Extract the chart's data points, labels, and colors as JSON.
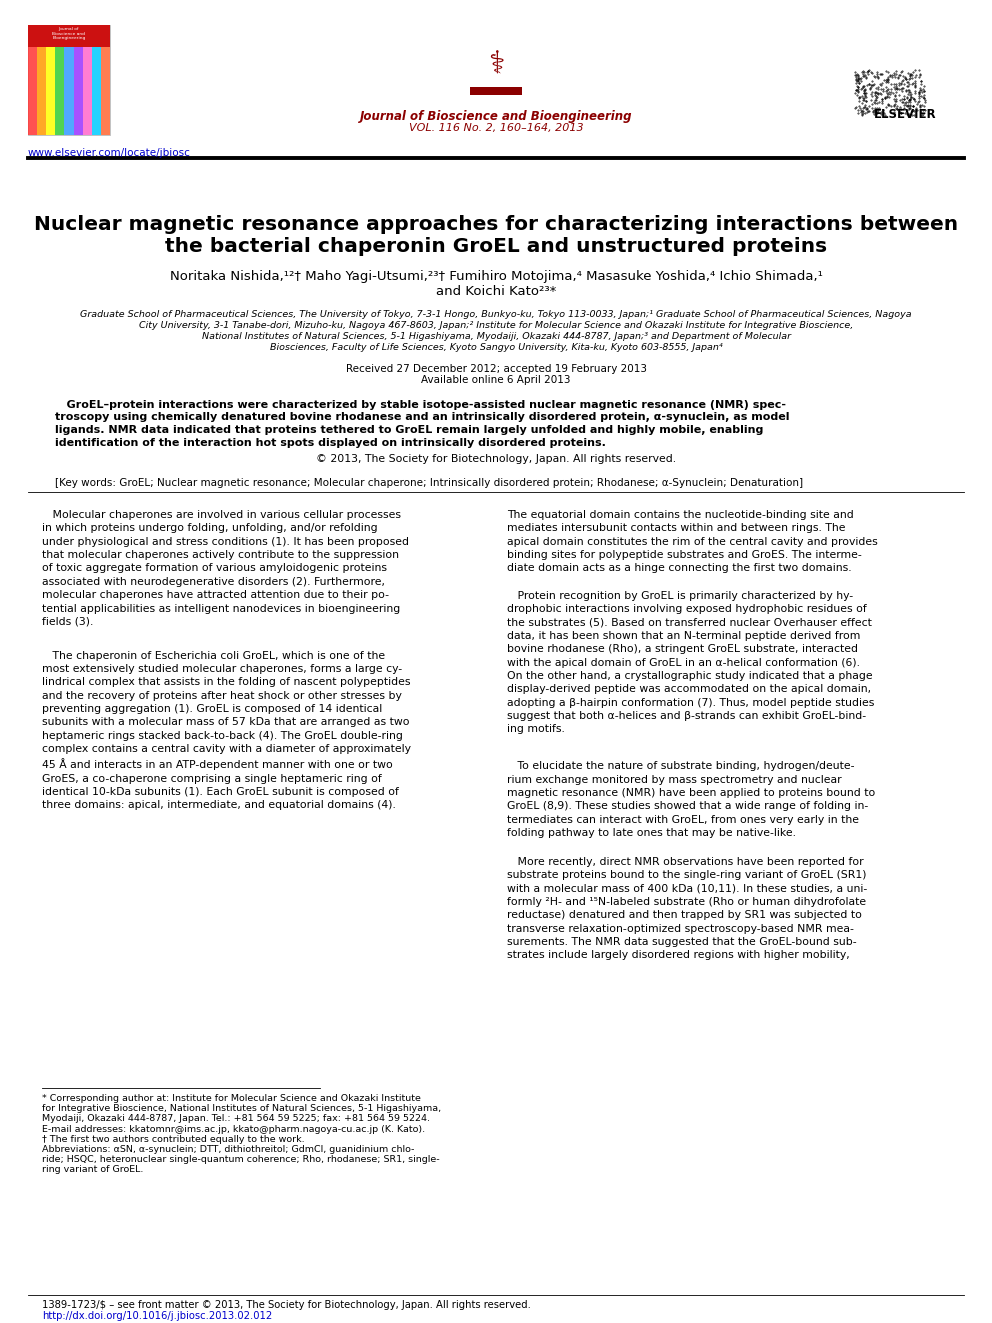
{
  "background_color": "#ffffff",
  "header": {
    "journal_name": "Journal of Bioscience and Bioengineering",
    "journal_vol": "VOL. 116 No. 2, 160–164, 2013",
    "journal_color": "#8B0000",
    "website": "www.elsevier.com/locate/jbiosc",
    "website_color": "#0000CC"
  },
  "title_line1": "Nuclear magnetic resonance approaches for characterizing interactions between",
  "title_line2": "the bacterial chaperonin GroEL and unstructured proteins",
  "title_color": "#000000",
  "title_fontsize": 14.5,
  "author_line1": "Noritaka Nishida,¹²† Maho Yagi-Utsumi,²³† Fumihiro Motojima,⁴ Masasuke Yoshida,⁴ Ichio Shimada,¹",
  "author_line2": "and Koichi Kato²³*",
  "author_fontsize": 9.5,
  "affil_line1": "Graduate School of Pharmaceutical Sciences, The University of Tokyo, 7-3-1 Hongo, Bunkyo-ku, Tokyo 113-0033, Japan;¹ Graduate School of Pharmaceutical Sciences, Nagoya",
  "affil_line2": "City University, 3-1 Tanabe-dori, Mizuho-ku, Nagoya 467-8603, Japan;² Institute for Molecular Science and Okazaki Institute for Integrative Bioscience,",
  "affil_line3": "National Institutes of Natural Sciences, 5-1 Higashiyama, Myodaiji, Okazaki 444-8787, Japan;³ and Department of Molecular",
  "affil_line4": "Biosciences, Faculty of Life Sciences, Kyoto Sangyo University, Kita-ku, Kyoto 603-8555, Japan⁴",
  "date_line1": "Received 27 December 2012; accepted 19 February 2013",
  "date_line2": "Available online 6 April 2013",
  "abstract_line1": "   GroEL–protein interactions were characterized by stable isotope-assisted nuclear magnetic resonance (NMR) spec-",
  "abstract_line2": "troscopy using chemically denatured bovine rhodanese and an intrinsically disordered protein, α-synuclein, as model",
  "abstract_line3": "ligands. NMR data indicated that proteins tethered to GroEL remain largely unfolded and highly mobile, enabling",
  "abstract_line4": "identification of the interaction hot spots displayed on intrinsically disordered proteins.",
  "copyright": "© 2013, The Society for Biotechnology, Japan. All rights reserved.",
  "keywords": "[Key words: GroEL; Nuclear magnetic resonance; Molecular chaperone; Intrinsically disordered protein; Rhodanese; α-Synuclein; Denaturation]",
  "col1_para1": "   Molecular chaperones are involved in various cellular processes\nin which proteins undergo folding, unfolding, and/or refolding\nunder physiological and stress conditions (1). It has been proposed\nthat molecular chaperones actively contribute to the suppression\nof toxic aggregate formation of various amyloidogenic proteins\nassociated with neurodegenerative disorders (2). Furthermore,\nmolecular chaperones have attracted attention due to their po-\ntential applicabilities as intelligent nanodevices in bioengineering\nfields (3).",
  "col1_para2": "   The chaperonin of Escherichia coli GroEL, which is one of the\nmost extensively studied molecular chaperones, forms a large cy-\nlindrical complex that assists in the folding of nascent polypeptides\nand the recovery of proteins after heat shock or other stresses by\npreventing aggregation (1). GroEL is composed of 14 identical\nsubunits with a molecular mass of 57 kDa that are arranged as two\nheptameric rings stacked back-to-back (4). The GroEL double-ring\ncomplex contains a central cavity with a diameter of approximately\n45 Å and interacts in an ATP-dependent manner with one or two\nGroES, a co-chaperone comprising a single heptameric ring of\nidentical 10-kDa subunits (1). Each GroEL subunit is composed of\nthree domains: apical, intermediate, and equatorial domains (4).",
  "col2_para1": "The equatorial domain contains the nucleotide-binding site and\nmediates intersubunit contacts within and between rings. The\napical domain constitutes the rim of the central cavity and provides\nbinding sites for polypeptide substrates and GroES. The interme-\ndiate domain acts as a hinge connecting the first two domains.",
  "col2_para2": "   Protein recognition by GroEL is primarily characterized by hy-\ndrophobic interactions involving exposed hydrophobic residues of\nthe substrates (5). Based on transferred nuclear Overhauser effect\ndata, it has been shown that an N-terminal peptide derived from\nbovine rhodanese (Rho), a stringent GroEL substrate, interacted\nwith the apical domain of GroEL in an α-helical conformation (6).\nOn the other hand, a crystallographic study indicated that a phage\ndisplay-derived peptide was accommodated on the apical domain,\nadopting a β-hairpin conformation (7). Thus, model peptide studies\nsuggest that both α-helices and β-strands can exhibit GroEL-bind-\ning motifs.",
  "col2_para3": "   To elucidate the nature of substrate binding, hydrogen/deute-\nrium exchange monitored by mass spectrometry and nuclear\nmagnetic resonance (NMR) have been applied to proteins bound to\nGroEL (8,9). These studies showed that a wide range of folding in-\ntermediates can interact with GroEL, from ones very early in the\nfolding pathway to late ones that may be native-like.",
  "col2_para4": "   More recently, direct NMR observations have been reported for\nsubstrate proteins bound to the single-ring variant of GroEL (SR1)\nwith a molecular mass of 400 kDa (10,11). In these studies, a uni-\nformly ²H- and ¹⁵N-labeled substrate (Rho or human dihydrofolate\nreductase) denatured and then trapped by SR1 was subjected to\ntransverse relaxation-optimized spectroscopy-based NMR mea-\nsurements. The NMR data suggested that the GroEL-bound sub-\nstrates include largely disordered regions with higher mobility,",
  "fn1": "* Corresponding author at: Institute for Molecular Science and Okazaki Institute",
  "fn2": "for Integrative Bioscience, National Institutes of Natural Sciences, 5-1 Higashiyama,",
  "fn3": "Myodaiji, Okazaki 444-8787, Japan. Tel.: +81 564 59 5225; fax: +81 564 59 5224.",
  "fn4": "E-mail addresses: kkatomnr@ims.ac.jp, kkato@pharm.nagoya-cu.ac.jp (K. Kato).",
  "fn5": "† The first two authors contributed equally to the work.",
  "fn6": "Abbreviations: αSN, α-synuclein; DTT, dithiothreitol; GdmCl, guanidinium chlo-",
  "fn7": "ride; HSQC, heteronuclear single-quantum coherence; Rho, rhodanese; SR1, single-",
  "fn8": "ring variant of GroEL.",
  "bottom1": "1389-1723/$ – see front matter © 2013, The Society for Biotechnology, Japan. All rights reserved.",
  "bottom2": "http://dx.doi.org/10.1016/j.jbiosc.2013.02.012",
  "bottom_color": "#0000CC"
}
